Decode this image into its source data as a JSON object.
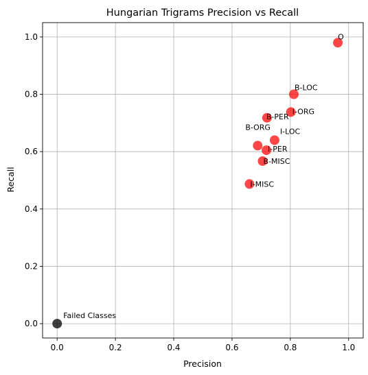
{
  "chart_data": {
    "type": "scatter",
    "title": "Hungarian Trigrams Precision vs Recall",
    "xlabel": "Precision",
    "ylabel": "Recall",
    "xlim": [
      -0.05,
      1.05
    ],
    "ylim": [
      -0.05,
      1.05
    ],
    "xticks": [
      0.0,
      0.2,
      0.4,
      0.6,
      0.8,
      1.0
    ],
    "yticks": [
      0.0,
      0.2,
      0.4,
      0.6,
      0.8,
      1.0
    ],
    "tick_labels": [
      "0.0",
      "0.2",
      "0.4",
      "0.6",
      "0.8",
      "1.0"
    ],
    "grid": true,
    "colors": {
      "points": "#ff0000",
      "failed": "#000000",
      "grid": "#b0b0b0"
    },
    "points": [
      {
        "label": "O",
        "x": 0.963,
        "y": 0.98
      },
      {
        "label": "B-LOC",
        "x": 0.812,
        "y": 0.8
      },
      {
        "label": "I-ORG",
        "x": 0.802,
        "y": 0.738
      },
      {
        "label": "B-PER",
        "x": 0.72,
        "y": 0.718
      },
      {
        "label": "I-LOC",
        "x": 0.746,
        "y": 0.64
      },
      {
        "label": "B-ORG",
        "x": 0.688,
        "y": 0.621
      },
      {
        "label": "I-PER",
        "x": 0.718,
        "y": 0.605
      },
      {
        "label": "B-MISC",
        "x": 0.705,
        "y": 0.567
      },
      {
        "label": "I-MISC",
        "x": 0.66,
        "y": 0.487
      }
    ],
    "failed": {
      "label": "Failed Classes",
      "x": 0.0,
      "y": 0.0
    }
  }
}
